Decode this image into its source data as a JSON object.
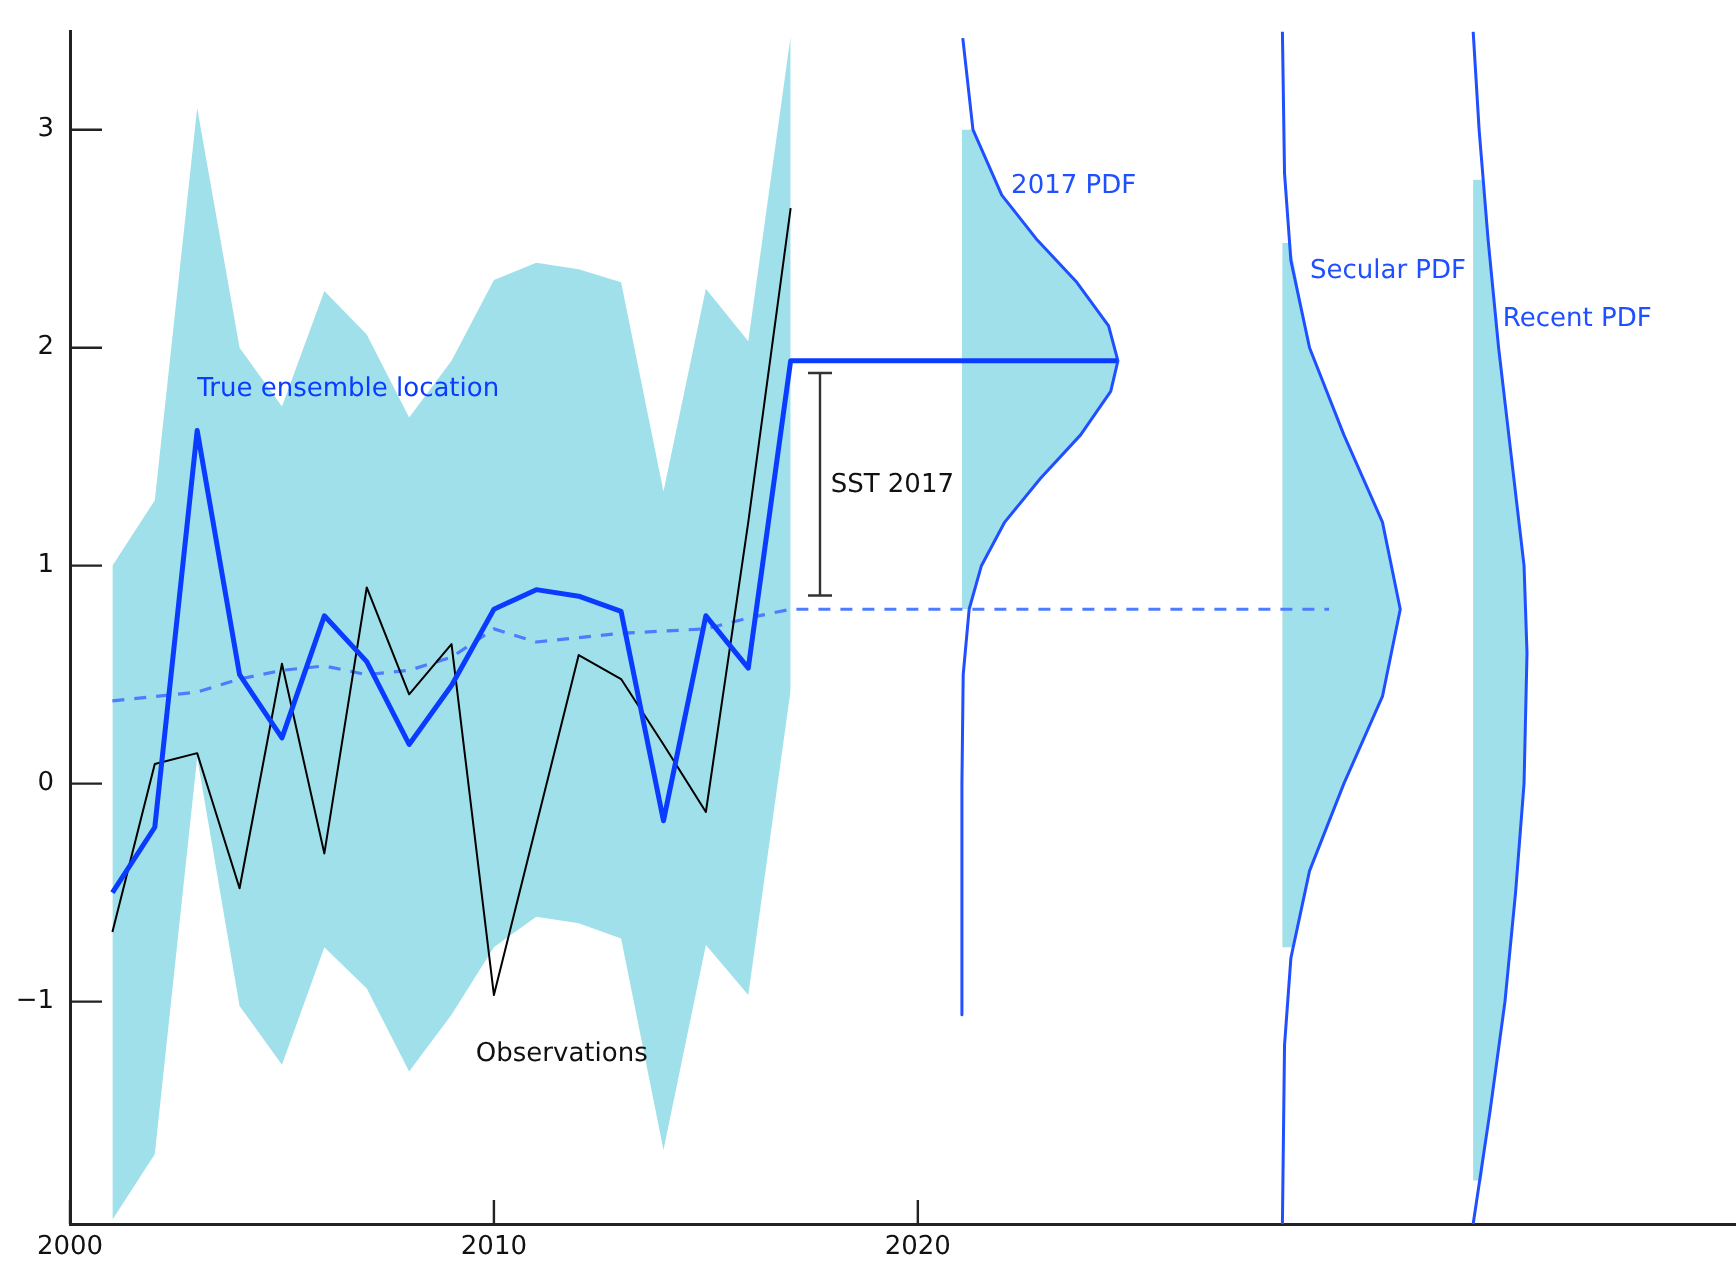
{
  "chart_data": {
    "type": "line",
    "xlim": [
      2000,
      2039.3
    ],
    "xticks": [
      2000,
      2010,
      2020
    ],
    "ylim": [
      -2.02,
      3.45
    ],
    "yticks": [
      -1,
      0,
      1,
      2,
      3
    ],
    "grid": false,
    "legend": false,
    "marker": "none",
    "line_style": "solid",
    "annotations": [
      "SST 2017"
    ],
    "series": [
      {
        "name": "True ensemble location",
        "color": "#0a3cff",
        "x": [
          2001,
          2002,
          2003,
          2004,
          2005,
          2006,
          2007,
          2008,
          2009,
          2010,
          2011,
          2012,
          2013,
          2014,
          2015,
          2016,
          2017,
          2024.7
        ],
        "values": [
          -0.5,
          -0.2,
          1.62,
          0.5,
          0.21,
          0.77,
          0.56,
          0.18,
          0.45,
          0.8,
          0.89,
          0.86,
          0.79,
          -0.17,
          0.77,
          0.53,
          1.94,
          1.94
        ],
        "lower": [
          -2.0,
          -1.7,
          0.12,
          -1.02,
          -1.29,
          -0.75,
          -0.94,
          -1.32,
          -1.06,
          -0.75,
          -0.61,
          -0.64,
          -0.71,
          -1.68,
          -0.74,
          -0.97,
          0.43,
          null
        ],
        "upper": [
          1.0,
          1.3,
          3.1,
          2.0,
          1.73,
          2.26,
          2.06,
          1.68,
          1.94,
          2.31,
          2.39,
          2.36,
          2.3,
          1.34,
          2.27,
          2.03,
          3.43,
          null
        ]
      },
      {
        "name": "Observations",
        "color": "#000000",
        "x": [
          2001,
          2002,
          2003,
          2004,
          2005,
          2006,
          2007,
          2008,
          2009,
          2010,
          2011,
          2012,
          2013,
          2014,
          2015,
          2016,
          2017
        ],
        "values": [
          -0.68,
          0.09,
          0.14,
          -0.48,
          0.55,
          -0.32,
          0.9,
          0.41,
          0.64,
          -0.97,
          -0.19,
          0.59,
          0.48,
          0.18,
          -0.13,
          1.2,
          2.64
        ]
      },
      {
        "type": "line",
        "line_style": "dashed",
        "color": "#4d7cff",
        "x": [
          2001,
          2002,
          2003,
          2004,
          2005,
          2006,
          2007,
          2008,
          2009,
          2010,
          2011,
          2012,
          2013,
          2014,
          2015,
          2016,
          2017,
          2029.7
        ],
        "values": [
          0.38,
          0.4,
          0.42,
          0.48,
          0.52,
          0.54,
          0.5,
          0.52,
          0.58,
          0.71,
          0.65,
          0.67,
          0.69,
          0.7,
          0.71,
          0.76,
          0.8,
          0.8
        ]
      },
      {
        "name": "2017 PDF",
        "color": "#1f4fff",
        "x": [
          2021.06,
          2021.3,
          2021.98,
          2022.79,
          2023.75,
          2024.5,
          2024.72,
          2024.55,
          2023.84,
          2022.89,
          2022.05,
          2021.5,
          2021.21,
          2021.07,
          2021.04,
          2021.04
        ],
        "values": [
          3.42,
          3.0,
          2.7,
          2.5,
          2.3,
          2.1,
          1.94,
          1.8,
          1.6,
          1.4,
          1.2,
          1.0,
          0.8,
          0.5,
          0,
          -1.06
        ]
      },
      {
        "name": "Secular PDF",
        "color": "#1f4fff",
        "x": [
          2028.6,
          2028.65,
          2028.8,
          2029.24,
          2030.05,
          2030.96,
          2031.38,
          2030.96,
          2030.05,
          2029.24,
          2028.8,
          2028.65,
          2028.6
        ],
        "values": [
          3.45,
          2.8,
          2.4,
          2.0,
          1.6,
          1.2,
          0.8,
          0.4,
          0,
          -0.4,
          -0.8,
          -1.2,
          -2.02
        ]
      },
      {
        "name": "Recent PDF",
        "color": "#1f4fff",
        "x": [
          2033.1,
          2033.24,
          2033.45,
          2033.7,
          2034.0,
          2034.3,
          2034.37,
          2034.3,
          2034.1,
          2033.85,
          2033.5,
          2033.1
        ],
        "values": [
          3.45,
          3.0,
          2.5,
          2.0,
          1.5,
          1.0,
          0.6,
          0,
          -0.5,
          -1.0,
          -1.5,
          -2.02
        ]
      },
      {
        "type": "area",
        "color": "#a0e0ea",
        "x": [
          2021.04,
          2021.3,
          2021.98,
          2022.79,
          2023.75,
          2024.5,
          2024.72,
          2024.55,
          2023.84,
          2022.89,
          2022.05,
          2021.5,
          2021.21,
          2021.04
        ],
        "values": [
          3.0,
          3.0,
          2.7,
          2.5,
          2.3,
          2.1,
          1.94,
          1.8,
          1.6,
          1.4,
          1.2,
          1.0,
          0.8,
          0.8
        ]
      },
      {
        "type": "area",
        "color": "#a0e0ea",
        "x": [
          2028.6,
          2028.78,
          2029.24,
          2030.05,
          2030.96,
          2031.38,
          2030.96,
          2030.05,
          2029.24,
          2028.84,
          2028.6
        ],
        "values": [
          2.48,
          2.48,
          2.0,
          1.6,
          1.2,
          0.8,
          0.4,
          0,
          -0.4,
          -0.75,
          -0.75
        ]
      },
      {
        "type": "area",
        "color": "#a0e0ea",
        "x": [
          2033.1,
          2033.3,
          2033.45,
          2033.7,
          2034.0,
          2034.3,
          2034.37,
          2034.3,
          2034.1,
          2033.85,
          2033.5,
          2033.3,
          2033.1
        ],
        "values": [
          2.77,
          2.77,
          2.5,
          2.0,
          1.5,
          1.0,
          0.6,
          0,
          -0.5,
          -1.0,
          -1.5,
          -1.82,
          -1.82
        ]
      }
    ]
  }
}
